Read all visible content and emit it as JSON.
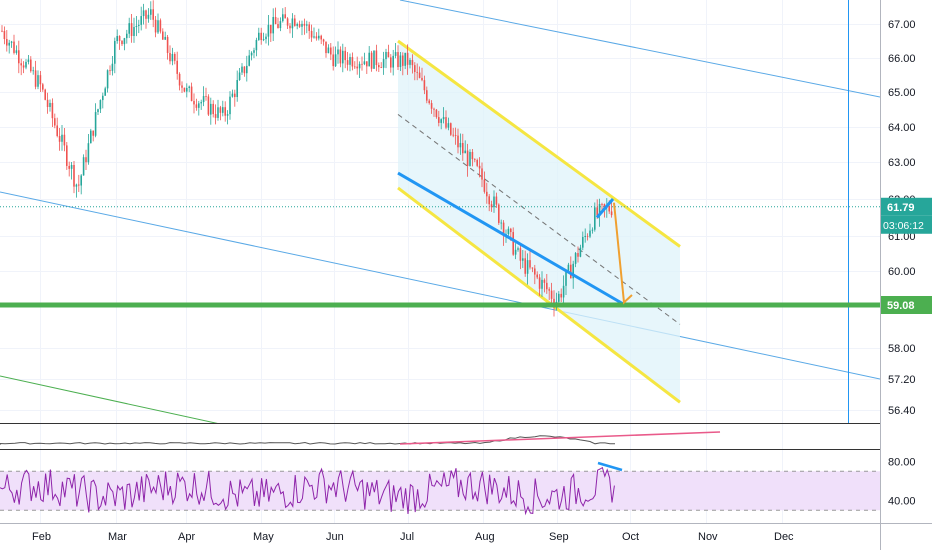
{
  "chart_data": {
    "type": "candlestick",
    "price_axis": {
      "ticks": [
        {
          "label": "67.00",
          "value": 67.0
        },
        {
          "label": "66.00",
          "value": 66.0
        },
        {
          "label": "65.00",
          "value": 65.0
        },
        {
          "label": "64.00",
          "value": 64.0
        },
        {
          "label": "63.00",
          "value": 63.0
        },
        {
          "label": "62.00",
          "value": 62.0
        },
        {
          "label": "61.00",
          "value": 61.0
        },
        {
          "label": "60.00",
          "value": 60.0
        },
        {
          "label": "58.00",
          "value": 58.0
        },
        {
          "label": "57.20",
          "value": 57.2
        },
        {
          "label": "56.40",
          "value": 56.4
        }
      ],
      "scale": "log",
      "last_price_label": "61.79",
      "last_price": 61.79,
      "countdown_label": "03:06:12",
      "support_label": "59.08",
      "support_level": 59.08
    },
    "time_axis": [
      "Feb",
      "Mar",
      "Apr",
      "May",
      "Jun",
      "Jul",
      "Aug",
      "Sep",
      "Oct",
      "Nov",
      "Dec"
    ],
    "price_series_anchors": [
      [
        "Jan",
        66.8
      ],
      [
        "Feb",
        65.2
      ],
      [
        "Feb",
        62.3
      ],
      [
        "Mar",
        66.5
      ],
      [
        "Mar",
        67.3
      ],
      [
        "Apr",
        65.0
      ],
      [
        "Apr",
        64.3
      ],
      [
        "May",
        66.8
      ],
      [
        "May",
        67.2
      ],
      [
        "Jun",
        66.0
      ],
      [
        "Jul",
        65.9
      ],
      [
        "Jul",
        64.0
      ],
      [
        "Aug",
        62.5
      ],
      [
        "Aug",
        60.3
      ],
      [
        "Sep",
        59.2
      ],
      [
        "Sep",
        61.5
      ],
      [
        "Oct",
        61.79
      ]
    ],
    "descending_channel": {
      "upper": [
        [
          "Jul",
          66.5
        ],
        [
          "Oct",
          60.7
        ]
      ],
      "lower": [
        [
          "Jul",
          62.3
        ],
        [
          "Oct",
          56.6
        ]
      ]
    },
    "annotations": [
      "descending channel",
      "support line",
      "projected drop to support"
    ],
    "volume_pane": true,
    "rsi_pane": {
      "ticks": [
        "80.00",
        "40.00"
      ],
      "upper_band": 70,
      "lower_band": 30
    },
    "colors": {
      "candle_up": "#26a69a",
      "candle_down": "#ef5350",
      "channel": "#f5e642",
      "channel_fill": "#dff3fa",
      "support": "#4caf50",
      "trendline_blue": "#2196f3",
      "projection": "#f0a030",
      "rsi_line": "#8e24aa",
      "rsi_band": "#f0e0fa"
    }
  }
}
